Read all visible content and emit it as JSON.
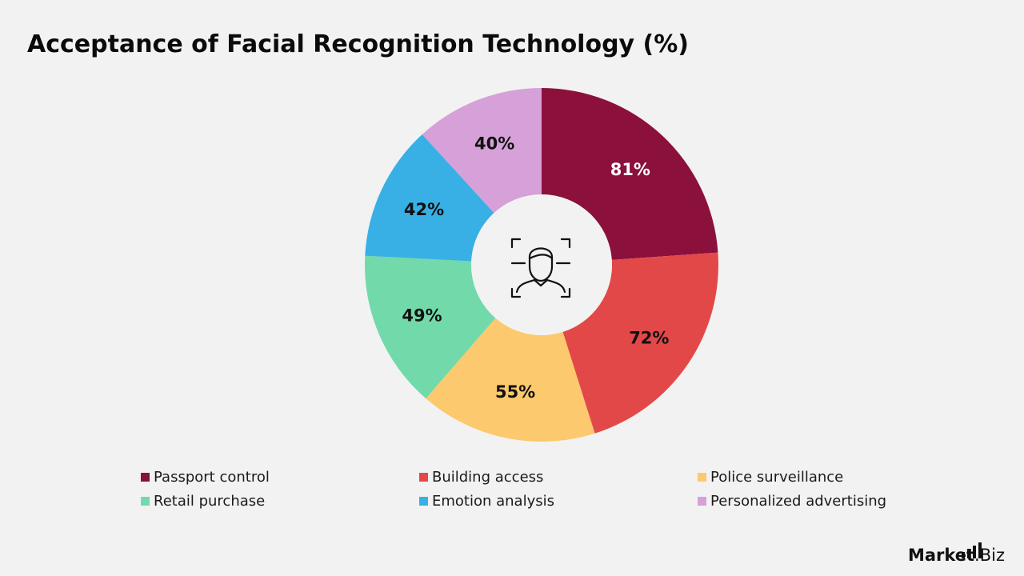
{
  "title": "Acceptance of Facial Recognition Technology (%)",
  "chart_data": {
    "type": "pie",
    "variant": "donut",
    "categories": [
      "Passport control",
      "Building access",
      "Police surveillance",
      "Retail purchase",
      "Emotion analysis",
      "Personalized advertising"
    ],
    "values": [
      81,
      72,
      55,
      49,
      42,
      40
    ],
    "data_labels": [
      "81%",
      "72%",
      "55%",
      "49%",
      "42%",
      "40%"
    ],
    "colors": [
      "#8b103c",
      "#e34848",
      "#fcc96e",
      "#72d9ab",
      "#38b0e5",
      "#d6a0d8"
    ],
    "label_colors": [
      "#ffffff",
      "#111111",
      "#111111",
      "#111111",
      "#111111",
      "#111111"
    ],
    "center_icon": "face-recognition-icon",
    "legend_position": "bottom"
  },
  "logo": {
    "brand": "Market",
    "suffix": ".Biz"
  }
}
